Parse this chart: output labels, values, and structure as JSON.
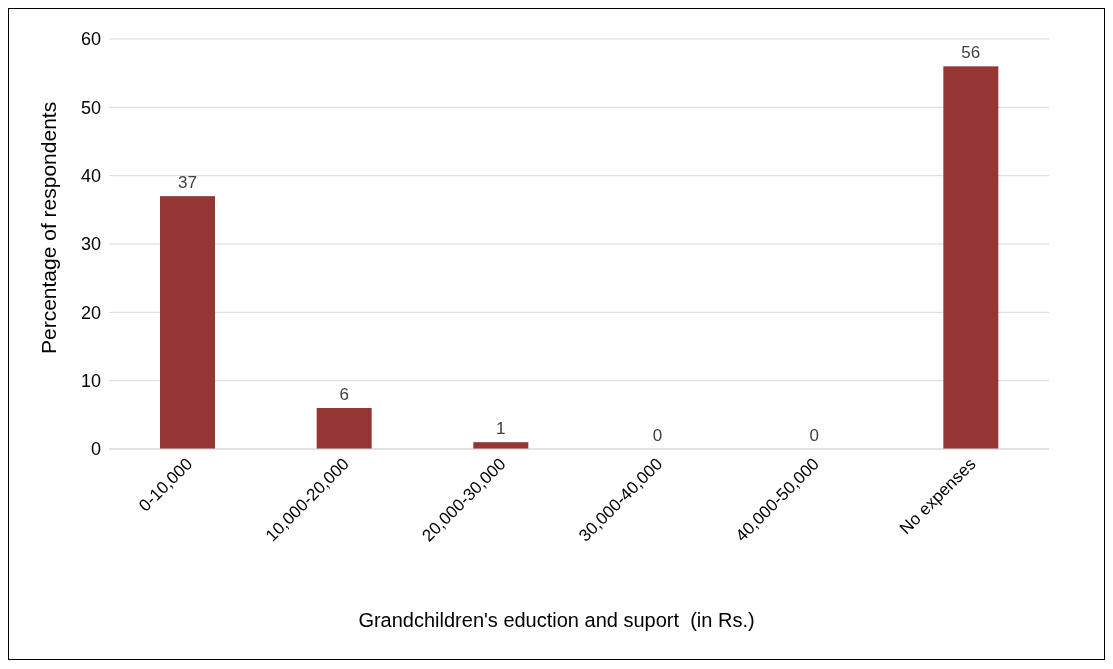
{
  "chart_data": {
    "type": "bar",
    "xlabel": "Grandchildren's eduction and suport  (in Rs.)",
    "ylabel": "Percentage of respondents",
    "categories": [
      "0-10,000",
      "10,000-20,000",
      "20,000-30,000",
      "30,000-40,000",
      "40,000-50,000",
      "No expenses"
    ],
    "values": [
      37,
      6,
      1,
      0,
      0,
      56
    ],
    "color": "#963634",
    "ylim": [
      0,
      60
    ],
    "yticks": [
      0,
      10,
      20,
      30,
      40,
      50,
      60
    ],
    "grid": "y",
    "data_labels": true
  }
}
